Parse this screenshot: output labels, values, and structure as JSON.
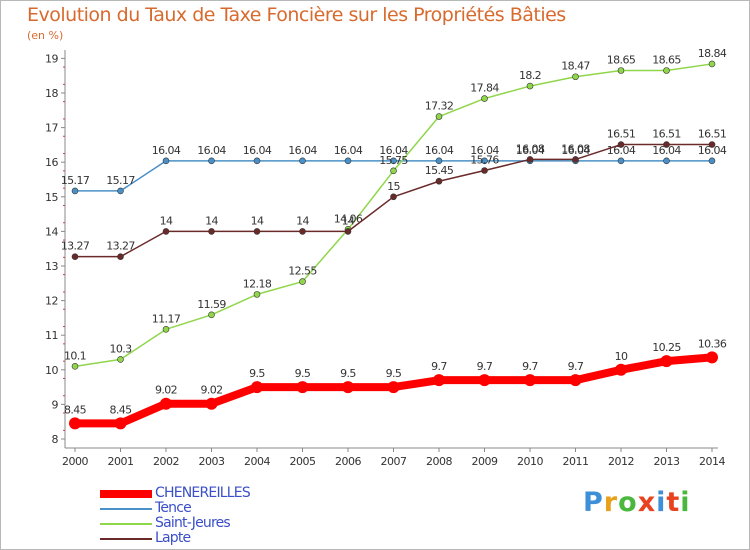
{
  "title": "Evolution du Taux de Taxe Foncière sur les Propriétés Bâties",
  "subtitle": "(en %)",
  "logo": {
    "letters": [
      "P",
      "r",
      "o",
      "x",
      "i",
      "t",
      "i"
    ],
    "colors": [
      "#3d8fd8",
      "#e8a11a",
      "#49b83d",
      "#e8421f",
      "#3d8fd8",
      "#e8421f",
      "#49b83d"
    ]
  },
  "chart_data": {
    "type": "line",
    "x": [
      "2000",
      "2001",
      "2002",
      "2003",
      "2004",
      "2005",
      "2006",
      "2007",
      "2008",
      "2009",
      "2010",
      "2011",
      "2012",
      "2013",
      "2014"
    ],
    "yticks": [
      "8",
      "9",
      "10",
      "11",
      "12",
      "13",
      "14",
      "15",
      "16",
      "17",
      "18",
      "19"
    ],
    "ylim": [
      8,
      19
    ],
    "grid": false,
    "legend_position": "bottom-left",
    "series": [
      {
        "name": "Tence",
        "color": "#4a90c8",
        "width": 1.5,
        "marker": 3,
        "values": [
          15.17,
          15.17,
          16.04,
          16.04,
          16.04,
          16.04,
          16.04,
          16.04,
          16.04,
          16.04,
          16.04,
          16.04,
          16.04,
          16.04,
          16.04
        ],
        "labels": [
          "15.17",
          "15.17",
          "16.04",
          "16.04",
          "16.04",
          "16.04",
          "16.04",
          "16.04",
          "16.04",
          "16.04",
          "16.04",
          "16.04",
          "16.04",
          "16.04",
          "16.04"
        ]
      },
      {
        "name": "Saint-Jeures",
        "color": "#8fd64a",
        "width": 1.5,
        "marker": 3,
        "values": [
          10.1,
          10.3,
          11.17,
          11.59,
          12.18,
          12.55,
          14.06,
          15.75,
          17.32,
          17.84,
          18.2,
          18.47,
          18.65,
          18.65,
          18.84
        ],
        "labels": [
          "10.1",
          "10.3",
          "11.17",
          "11.59",
          "12.18",
          "12.55",
          "14.06",
          "15.75",
          "17.32",
          "17.84",
          "18.2",
          "18.47",
          "18.65",
          "18.65",
          "18.84"
        ]
      },
      {
        "name": "Lapte",
        "color": "#6b2a2a",
        "width": 1.5,
        "marker": 3,
        "values": [
          13.27,
          13.27,
          14,
          14,
          14,
          14,
          14,
          15,
          15.45,
          15.76,
          16.08,
          16.08,
          16.51,
          16.51,
          16.51
        ],
        "labels": [
          "13.27",
          "13.27",
          "14",
          "14",
          "14",
          "14",
          "14",
          "15",
          "15.45",
          "15.76",
          "16.08",
          "16.08",
          "16.51",
          "16.51",
          "16.51"
        ]
      },
      {
        "name": "CHENEREILLES",
        "color": "#ff0000",
        "width": 8,
        "marker": 6,
        "values": [
          8.45,
          8.45,
          9.02,
          9.02,
          9.5,
          9.5,
          9.5,
          9.5,
          9.7,
          9.7,
          9.7,
          9.7,
          10,
          10.25,
          10.36
        ],
        "labels": [
          "8.45",
          "8.45",
          "9.02",
          "9.02",
          "9.5",
          "9.5",
          "9.5",
          "9.5",
          "9.7",
          "9.7",
          "9.7",
          "9.7",
          "10",
          "10.25",
          "10.36"
        ]
      }
    ]
  }
}
